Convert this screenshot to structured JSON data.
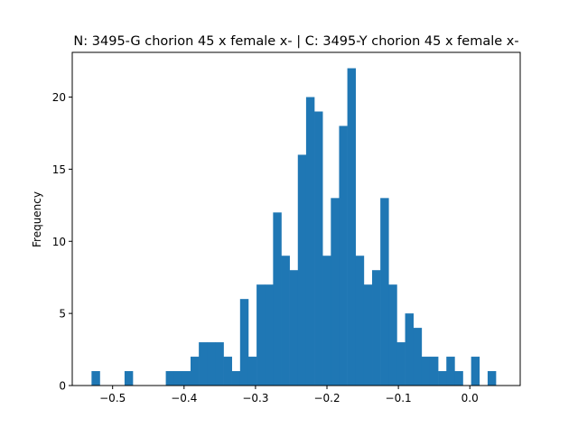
{
  "chart_data": {
    "type": "bar",
    "title": "N: 3495-G chorion 45 x female x- | C: 3495-Y chorion 45 x female x-",
    "xlabel": "",
    "ylabel": "Frequency",
    "xlim": [
      -0.5565,
      0.0705
    ],
    "ylim": [
      0,
      23.1
    ],
    "bin_width": 0.01155,
    "bin_start": -0.5295,
    "bar_color": "#1f77b4",
    "x_ticks": [
      -0.5,
      -0.4,
      -0.3,
      -0.2,
      -0.1,
      0.0
    ],
    "x_tick_labels": [
      "−0.5",
      "−0.4",
      "−0.3",
      "−0.2",
      "−0.1",
      "0.0"
    ],
    "y_ticks": [
      0,
      5,
      10,
      15,
      20
    ],
    "y_tick_labels": [
      "0",
      "5",
      "10",
      "15",
      "20"
    ],
    "values": [
      1,
      0,
      0,
      0,
      1,
      0,
      0,
      0,
      0,
      1,
      1,
      1,
      2,
      3,
      3,
      3,
      2,
      1,
      6,
      2,
      7,
      7,
      12,
      9,
      8,
      16,
      20,
      19,
      9,
      13,
      18,
      22,
      9,
      7,
      8,
      13,
      7,
      3,
      5,
      4,
      2,
      2,
      1,
      2,
      1,
      0,
      2,
      0,
      1
    ]
  }
}
